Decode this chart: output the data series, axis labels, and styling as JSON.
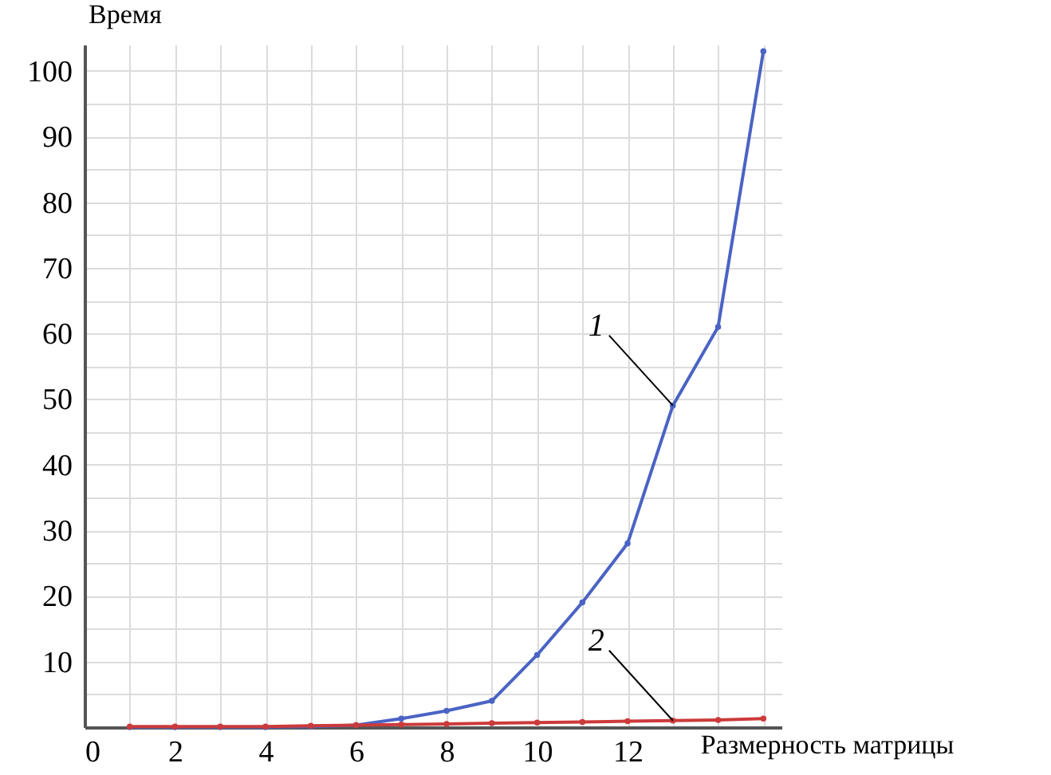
{
  "chart_data": {
    "type": "line",
    "xlabel": "Размерность матрицы",
    "ylabel": "Время",
    "x": [
      1,
      2,
      3,
      4,
      5,
      6,
      7,
      8,
      9,
      10,
      11,
      12,
      13,
      14,
      15
    ],
    "series": [
      {
        "color": "#4a63c4",
        "values": [
          0,
          0,
          0,
          0,
          0.1,
          0.3,
          1.3,
          2.5,
          4,
          11,
          19,
          28,
          49,
          61,
          103
        ]
      },
      {
        "color": "#cc3a3a",
        "values": [
          0.1,
          0.1,
          0.1,
          0.1,
          0.2,
          0.3,
          0.4,
          0.5,
          0.6,
          0.7,
          0.8,
          0.9,
          1,
          1.1,
          1.3
        ]
      }
    ],
    "annotations": [
      {
        "text": "1",
        "x": 13,
        "y": 49
      },
      {
        "text": "2",
        "x": 13,
        "y": 1
      }
    ],
    "xlim": [
      0,
      15.4
    ],
    "ylim": [
      0,
      104
    ],
    "xticks": [
      0,
      {
        "value": 1,
        "label": null
      },
      2,
      {
        "value": 3,
        "label": null
      },
      4,
      {
        "value": 5,
        "label": null
      },
      6,
      {
        "value": 7,
        "label": null
      },
      8,
      {
        "value": 9,
        "label": null
      },
      10,
      {
        "value": 11,
        "label": null
      },
      12,
      {
        "value": 13,
        "label": null
      },
      {
        "value": 14,
        "label": null
      },
      {
        "value": 15,
        "label": null
      }
    ],
    "yticks": [
      {
        "value": 0,
        "label": null
      },
      {
        "value": 5,
        "label": null
      },
      10,
      {
        "value": 15,
        "label": null
      },
      20,
      {
        "value": 25,
        "label": null
      },
      30,
      {
        "value": 35,
        "label": null
      },
      40,
      {
        "value": 45,
        "label": null
      },
      50,
      {
        "value": 55,
        "label": null
      },
      60,
      {
        "value": 65,
        "label": null
      },
      70,
      {
        "value": 75,
        "label": null
      },
      80,
      {
        "value": 85,
        "label": null
      },
      90,
      {
        "value": 95,
        "label": null
      },
      100
    ],
    "grid": true,
    "marker": "circle",
    "line_style": "solid",
    "legend": false
  }
}
